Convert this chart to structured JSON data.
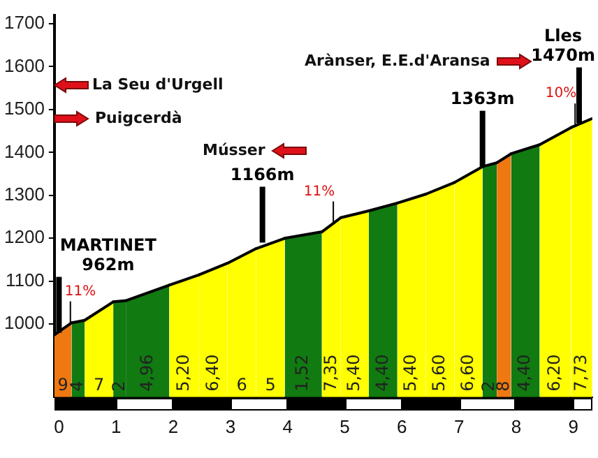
{
  "chart_data": {
    "type": "area",
    "series": [
      {
        "color": "#f07810",
        "x": [
          -0.08,
          0.22
        ],
        "values": [
          975,
          1003
        ]
      },
      {
        "color": "#117a11",
        "x": [
          0.22,
          0.45
        ],
        "values": [
          1003,
          1009
        ]
      },
      {
        "color": "#ffff00",
        "x": [
          0.45,
          0.95
        ],
        "values": [
          1009,
          1052
        ]
      },
      {
        "color": "#117a11",
        "x": [
          0.95,
          1.18
        ],
        "values": [
          1052,
          1055
        ]
      },
      {
        "color": "#117a11",
        "x": [
          1.18,
          1.93
        ],
        "values": [
          1055,
          1091
        ]
      },
      {
        "color": "#ffff00",
        "x": [
          1.93,
          2.45
        ],
        "values": [
          1091,
          1115
        ]
      },
      {
        "color": "#ffff00",
        "x": [
          2.45,
          2.95
        ],
        "values": [
          1115,
          1142
        ]
      },
      {
        "color": "#ffff00",
        "x": [
          2.95,
          3.45
        ],
        "values": [
          1142,
          1176
        ]
      },
      {
        "color": "#ffff00",
        "x": [
          3.45,
          3.95
        ],
        "values": [
          1176,
          1200
        ]
      },
      {
        "color": "#117a11",
        "x": [
          3.95,
          4.6
        ],
        "values": [
          1200,
          1215
        ]
      },
      {
        "color": "#ffff00",
        "x": [
          4.6,
          4.93
        ],
        "values": [
          1215,
          1248
        ]
      },
      {
        "color": "#ffff00",
        "x": [
          4.93,
          5.42
        ],
        "values": [
          1248,
          1264
        ]
      },
      {
        "color": "#117a11",
        "x": [
          5.42,
          5.92
        ],
        "values": [
          1264,
          1282
        ]
      },
      {
        "color": "#ffff00",
        "x": [
          5.92,
          6.42
        ],
        "values": [
          1282,
          1303
        ]
      },
      {
        "color": "#ffff00",
        "x": [
          6.42,
          6.92
        ],
        "values": [
          1303,
          1330
        ]
      },
      {
        "color": "#ffff00",
        "x": [
          6.92,
          7.41
        ],
        "values": [
          1330,
          1367
        ]
      },
      {
        "color": "#117a11",
        "x": [
          7.41,
          7.66
        ],
        "values": [
          1367,
          1376
        ]
      },
      {
        "color": "#f07810",
        "x": [
          7.66,
          7.91
        ],
        "values": [
          1376,
          1397
        ]
      },
      {
        "color": "#117a11",
        "x": [
          7.91,
          8.41
        ],
        "values": [
          1397,
          1418
        ]
      },
      {
        "color": "#ffff00",
        "x": [
          8.41,
          8.96
        ],
        "values": [
          1418,
          1458
        ]
      },
      {
        "color": "#ffff00",
        "x": [
          8.96,
          9.33
        ],
        "values": [
          1458,
          1479
        ]
      }
    ],
    "xlim": [
      -0.08,
      9.33
    ],
    "xticks": [
      0,
      1,
      2,
      3,
      4,
      5,
      6,
      7,
      8,
      9
    ],
    "ylim": [
      830,
      1720
    ],
    "yticks": [
      1000,
      1100,
      1200,
      1300,
      1400,
      1500,
      1600,
      1700
    ],
    "legend": false,
    "annotations": [
      "La Seu d'Urgell",
      "Puigcerdà",
      "Músser",
      "Arànser, E.E.d'Aransa",
      {
        "text": "MARTINET\n962m",
        "x": 0,
        "y": 980
      },
      {
        "text": "1166m",
        "x": 3.56,
        "y": 1190
      },
      {
        "text": "1363m",
        "x": 7.41,
        "y": 1367
      },
      {
        "text": "Lles\n1470m",
        "x": 9.1,
        "y": 1468
      },
      {
        "text": "11%",
        "x": 0.2,
        "y": 1001
      },
      {
        "text": "11%",
        "x": 4.8,
        "y": 1234
      },
      {
        "text": "10%",
        "x": 9.03,
        "y": 1462
      },
      "9",
      "4",
      "7",
      "2",
      "4,96",
      "5,20",
      "6,40",
      "6",
      "5",
      "1,52",
      "7,35",
      "5,40",
      "4,40",
      "5,40",
      "5,60",
      "6,60",
      "2",
      "8",
      "4,40",
      "6,20",
      "7,73"
    ]
  }
}
